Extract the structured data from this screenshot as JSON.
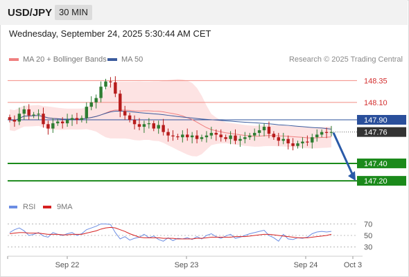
{
  "header": {
    "symbol": "USD/JPY",
    "timeframe": "30 MIN"
  },
  "datetime": "Wednesday, September 24, 2025 5:30:44 AM CET",
  "legend": {
    "ma20_label": "MA 20 + Bollinger Bands",
    "ma50_label": "MA 50"
  },
  "credit": "Research © 2025 Trading Central",
  "rsi_legend": {
    "rsi_label": "RSI",
    "ma_label": "9MA"
  },
  "colors": {
    "candle_up": "#2e7d32",
    "candle_down": "#b71c1c",
    "ma20": "#f08080",
    "ma50": "#3b5b9d",
    "bollinger_fill": "#fde3e3",
    "resistance": "#f28b82",
    "pivot": "#2a4f9b",
    "support": "#1b8a1b",
    "last_price_box": "#333333",
    "arrow": "#2a5aa8",
    "rsi": "#6b8de3",
    "rsi_ma": "#d62020"
  },
  "chart_data": [
    {
      "type": "candlestick",
      "title": "USD/JPY",
      "timeframe": "30 MIN",
      "y_range": [
        147.05,
        148.48
      ],
      "x_labels": [
        "Sep 22",
        "Sep 23",
        "Sep 24",
        "Oct 3"
      ],
      "levels": [
        {
          "value": 148.35,
          "label": "148.35",
          "kind": "resistance"
        },
        {
          "value": 148.1,
          "label": "148.10",
          "kind": "resistance"
        },
        {
          "value": 147.9,
          "label": "147.90",
          "kind": "pivot"
        },
        {
          "value": 147.4,
          "label": "147.40",
          "kind": "support"
        },
        {
          "value": 147.2,
          "label": "147.20",
          "kind": "support"
        }
      ],
      "last_price": {
        "value": 147.76,
        "label": "147.76"
      },
      "forecast_arrow": {
        "from": 147.76,
        "to": 147.2,
        "direction": "down"
      },
      "closes": [
        147.9,
        147.88,
        147.97,
        148.02,
        147.95,
        147.96,
        147.97,
        147.85,
        147.8,
        147.86,
        147.88,
        147.86,
        147.9,
        147.92,
        147.9,
        147.92,
        148.05,
        148.1,
        148.15,
        148.28,
        148.34,
        148.33,
        148.2,
        148.0,
        147.95,
        147.9,
        147.85,
        147.82,
        147.85,
        147.86,
        147.8,
        147.84,
        147.76,
        147.72,
        147.71,
        147.7,
        147.73,
        147.7,
        147.72,
        147.68,
        147.7,
        147.72,
        147.75,
        147.73,
        147.7,
        147.68,
        147.72,
        147.66,
        147.68,
        147.7,
        147.72,
        147.75,
        147.78,
        147.82,
        147.74,
        147.7,
        147.66,
        147.68,
        147.63,
        147.6,
        147.63,
        147.65,
        147.64,
        147.7,
        147.73,
        147.76,
        147.75,
        147.76
      ]
    },
    {
      "type": "line",
      "title": "RSI",
      "y_range": [
        20,
        80
      ],
      "y_ticks": [
        70,
        50,
        30
      ],
      "series": [
        {
          "name": "RSI",
          "values": [
            55,
            60,
            63,
            58,
            50,
            52,
            55,
            49,
            47,
            55,
            52,
            50,
            53,
            55,
            50,
            53,
            60,
            63,
            66,
            70,
            70,
            69,
            55,
            44,
            48,
            42,
            45,
            47,
            52,
            46,
            49,
            43,
            40,
            46,
            41,
            45,
            44,
            46,
            43,
            48,
            44,
            50,
            53,
            48,
            45,
            49,
            52,
            45,
            47,
            50,
            53,
            55,
            57,
            59,
            50,
            46,
            40,
            52,
            44,
            43,
            46,
            45,
            47,
            53,
            56,
            57,
            56,
            57
          ]
        },
        {
          "name": "9MA",
          "values": [
            53,
            54,
            55,
            55,
            54,
            54,
            54,
            53,
            52,
            52,
            52,
            51,
            51,
            52,
            52,
            52,
            54,
            56,
            58,
            61,
            63,
            64,
            63,
            60,
            57,
            53,
            50,
            47,
            46,
            46,
            46,
            46,
            45,
            45,
            45,
            44,
            44,
            44,
            44,
            45,
            45,
            46,
            47,
            47,
            47,
            47,
            47,
            48,
            48,
            48,
            49,
            50,
            51,
            52,
            52,
            51,
            50,
            49,
            48,
            47,
            46,
            46,
            46,
            47,
            48,
            49,
            50,
            52
          ]
        }
      ]
    }
  ]
}
